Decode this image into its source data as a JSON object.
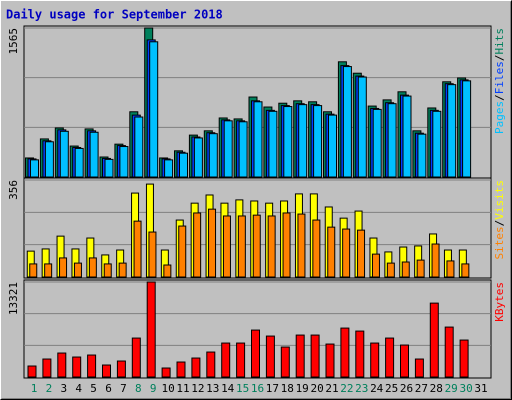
{
  "chart_data": [
    {
      "type": "bar",
      "title": "Daily usage for September 2018",
      "series": [
        {
          "name": "Hits",
          "color": "#00805c",
          "values": [
            200,
            400,
            515,
            325,
            505,
            210,
            345,
            685,
            1565,
            200,
            275,
            440,
            485,
            620,
            610,
            840,
            735,
            775,
            800,
            790,
            685,
            1210,
            1090,
            745,
            810,
            895,
            485,
            725,
            1000,
            1040,
            null
          ]
        },
        {
          "name": "Files",
          "color": "#0040ff",
          "values": [
            190,
            380,
            495,
            310,
            485,
            195,
            330,
            650,
            1440,
            190,
            260,
            420,
            465,
            600,
            590,
            800,
            700,
            750,
            770,
            760,
            660,
            1170,
            1060,
            720,
            780,
            860,
            460,
            700,
            980,
            1020,
            null
          ]
        },
        {
          "name": "Pages",
          "color": "#00c0ff",
          "values": [
            180,
            370,
            480,
            300,
            470,
            185,
            320,
            630,
            1420,
            180,
            250,
            410,
            455,
            590,
            580,
            790,
            690,
            740,
            760,
            750,
            650,
            1160,
            1050,
            710,
            770,
            850,
            450,
            690,
            970,
            1010,
            null
          ]
        }
      ],
      "ylim": [
        0,
        1565
      ],
      "yticks": [
        1565
      ],
      "grid_divisions": 3
    },
    {
      "type": "bar",
      "series": [
        {
          "name": "Visits",
          "color": "#ffff00",
          "values": [
            95,
            103,
            150,
            103,
            143,
            81,
            99,
            308,
            341,
            99,
            209,
            271,
            301,
            271,
            283,
            279,
            271,
            279,
            305,
            305,
            257,
            216,
            242,
            143,
            92,
            110,
            114,
            158,
            99,
            99,
            null
          ]
        },
        {
          "name": "Sites",
          "color": "#ff8000",
          "values": [
            48,
            48,
            70,
            51,
            70,
            48,
            51,
            205,
            165,
            44,
            187,
            235,
            249,
            224,
            224,
            227,
            224,
            235,
            231,
            209,
            183,
            176,
            172,
            84,
            51,
            55,
            62,
            121,
            59,
            48,
            null
          ]
        }
      ],
      "ylim": [
        0,
        356
      ],
      "yticks": [
        356
      ],
      "grid_divisions": 3
    },
    {
      "type": "bar",
      "series": [
        {
          "name": "KBytes",
          "color": "#ff0000",
          "values": [
            1540,
            2520,
            3360,
            2800,
            3080,
            1680,
            2240,
            5460,
            13321,
            1260,
            2100,
            2660,
            3500,
            4760,
            4760,
            6580,
            5740,
            4200,
            5880,
            5880,
            4620,
            6860,
            6440,
            4760,
            5460,
            4480,
            2520,
            10360,
            7000,
            5180,
            null
          ]
        }
      ],
      "ylim": [
        0,
        13321
      ],
      "yticks": [
        13321
      ],
      "grid_divisions": 3,
      "categories": [
        1,
        2,
        3,
        4,
        5,
        6,
        7,
        8,
        9,
        10,
        11,
        12,
        13,
        14,
        15,
        16,
        17,
        18,
        19,
        20,
        21,
        22,
        23,
        24,
        25,
        26,
        27,
        28,
        29,
        30,
        31
      ],
      "category_colors": [
        "#00805c",
        "#00805c",
        "#000000",
        "#000000",
        "#000000",
        "#000000",
        "#000000",
        "#00805c",
        "#00805c",
        "#000000",
        "#000000",
        "#000000",
        "#000000",
        "#000000",
        "#00805c",
        "#00805c",
        "#000000",
        "#000000",
        "#000000",
        "#000000",
        "#000000",
        "#00805c",
        "#00805c",
        "#000000",
        "#000000",
        "#000000",
        "#000000",
        "#000000",
        "#00805c",
        "#00805c",
        "#000000"
      ]
    }
  ],
  "legend_separator": "/"
}
